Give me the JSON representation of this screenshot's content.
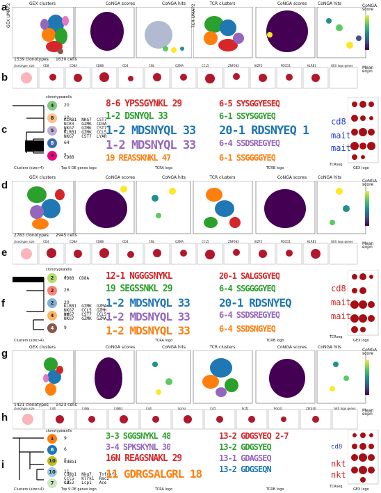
{
  "panels": {
    "a": {
      "letter": "a",
      "titles": [
        "GEX clusters",
        "CoNGA scores",
        "CoNGA hits",
        "TCR clusters",
        "CoNGA scores",
        "CoNGA hits"
      ],
      "clonotypes": "1539 clonotypes",
      "cells": "1630 cells",
      "gex_axis": "GEX UMAP2",
      "tcr_axis": "TCR UMAP2",
      "colorbar_title": "CoNGA\nscore",
      "colorbar_ticks": [
        "1e-5",
        "1e-4",
        "0.001",
        "0.01",
        "0.1",
        "1"
      ],
      "gex_cluster_numbers": [
        "0",
        "1",
        "2",
        "3",
        "4",
        "5",
        "6",
        "7"
      ],
      "tcr_cluster_labels": [
        "AV14++",
        "BV20",
        "AV9",
        "BV1",
        "AV12",
        "AV1"
      ]
    },
    "b": {
      "letter": "b",
      "strips": [
        "clonotype_size",
        "CD8",
        "CD8A",
        "CD8B",
        "CD4",
        "CNL",
        "GZMA",
        "CCL5",
        "ZNF683",
        "IKZF2",
        "PDCD1",
        "KLRB1",
        "GEX logo genes"
      ],
      "axis_labels": [
        "GEX UMAP1",
        "GEX UMAP1",
        "GEX UMAP1",
        "GEX UMAP1",
        "GEX UMAP1",
        "TCR UMAP1",
        "TCR UMAP1",
        "TCR UMAP1",
        "TCR UMAP1",
        "TCR UMAP1",
        "TCR UMAP1"
      ],
      "legend_title": "Mean\nexpn",
      "legend_max": "max",
      "legend_zero": "0"
    },
    "c": {
      "letter": "c",
      "circles": [
        {
          "a": "4",
          "b": "20"
        },
        {
          "a": "8",
          "b": "10"
        },
        {
          "a": "5",
          "b": "4"
        },
        {
          "a": "8",
          "b": "64"
        },
        {
          "a": "9",
          "b": "5"
        }
      ],
      "header": [
        "clonotypes",
        "cells"
      ],
      "genes": "KLRB1  NKG7  CST7\nNCR3   GZMK  CD3A\nNKG7   GZMK  CST7\nKLRB1  GZMK  CCL5\nNKG7   CST7  LYAR",
      "gene_extra": "CD8B",
      "footer": "Clusters (size>4)",
      "genes_label": "Top 9 DE genes logo",
      "tcra_label": "TCRA logo",
      "tcrb_label": "TCRB logo",
      "tcrseq_label": "TCRseq",
      "gexlogo_label": "GEX logo",
      "tcra_rows": [
        "8-6 YPSSGYNKL 29",
        "1-2 DSNYQL 33",
        "1-2 MDSNYQL 33",
        "1-2 MDSNYQL 33",
        "19 REASSKNKL 47"
      ],
      "tcrb_rows": [
        "6-5 SYSGGYESEQ",
        "6-1 SSYSGGYEQ",
        "20-1 RDSNYEQ 1",
        "6-4 SSDSREGYEQ",
        "6-1 SSGGGGYEQ"
      ],
      "side_tags": [
        "cd8",
        "mait",
        "mait"
      ]
    },
    "d": {
      "letter": "d",
      "titles": [
        "GEX clusters",
        "CoNGA scores",
        "CoNGA hits",
        "TCR clusters",
        "CoNGA scores",
        "CoNGA hits"
      ],
      "clonotypes": "2783 clonotypes",
      "cells": "2945 cells",
      "gex_axis": "GEX UMAP2",
      "tcr_axis": "TCR UMAP2",
      "colorbar_title": "CoNGA\nscore",
      "colorbar_ticks": [
        "1e-4",
        "0.001",
        "0.01",
        "0.1",
        "1"
      ],
      "gex_cluster_numbers": [
        "0",
        "1",
        "2",
        "3",
        "4",
        "6",
        "7",
        "8"
      ],
      "tcr_cluster_labels": [
        "AV1",
        "AV9",
        "AV8",
        "BV26",
        "AV14++",
        "BV2"
      ]
    },
    "e": {
      "letter": "e",
      "strips": [
        "clonotype_size",
        "CD4",
        "CD8A",
        "CD8B",
        "CD4",
        "CNL",
        "GZMA",
        "CCL5",
        "ZNF683",
        "IKZF2",
        "PDCD1",
        "KLRB1",
        "GEX logo genes"
      ],
      "legend_title": "Mean\nexpn",
      "legend_max": "max",
      "legend_zero": "0"
    },
    "f": {
      "letter": "f",
      "circles": [
        {
          "a": "2",
          "b": "4"
        },
        {
          "a": "2",
          "b": "26"
        },
        {
          "a": "2",
          "b": "20"
        },
        {
          "a": "4",
          "b": "77"
        },
        {
          "a": "4",
          "b": "9"
        }
      ],
      "header": [
        "clonotypes",
        "cells"
      ],
      "genes": "KLRB1  GZMK  GZMA\nNKG7   CCL5  GZMH\nNKG7   CST7  CCL5\nNKG7   GZMK  GZMA",
      "gene_extra": "CD8B  CD8A",
      "footer": "Clusters (size>4)",
      "genes_label": "Top 9 DE genes logo",
      "tcra_label": "TCRA logo",
      "tcrb_label": "TCRB logo",
      "tcrseq_label": "TCRseq",
      "gexlogo_label": "GEX logo",
      "tcra_rows": [
        "12-1 NGGGSNYKL",
        "19 SEGSSNKL 29",
        "1-2 MDSNYQL 33",
        "1-2 MDSNYQL 33",
        "1-2 MDSNYQL 33"
      ],
      "tcrb_rows": [
        "20-1 SALGSGYEQ",
        "6-4 SSGGGGYEQ",
        "20-1 RDSNYEQ",
        "6-4 SSDSREGYEQ",
        "6-4 SSDSNGYEQ"
      ],
      "side_tags": [
        "cd8",
        "mait",
        "mait"
      ]
    },
    "g": {
      "letter": "g",
      "titles": [
        "GEX clusters",
        "CoNGA scores",
        "CoNGA hits",
        "TCR clusters",
        "CoNGA scores",
        "CoNGA hits"
      ],
      "clonotypes": "1421 clonotypes",
      "cells": "1423 cells",
      "gex_axis": "GEX UMAP2",
      "tcr_axis": "TCR UMAP2",
      "colorbar_title": "CoNGA\nscore",
      "colorbar_ticks": [
        "1e-4",
        "0.001",
        "0.01",
        "0.1",
        "1"
      ],
      "gex_cluster_numbers": [
        "1",
        "2",
        "3",
        "4",
        "5",
        "6",
        "7",
        "10"
      ],
      "tcr_cluster_labels": [
        "AV4",
        "AV9",
        "AV14",
        "AV16",
        "BV1",
        "AV1"
      ]
    },
    "h": {
      "letter": "h",
      "strips": [
        "clonotype_size",
        "Cd4",
        "Cd8a",
        "Cd8b1",
        "Cd4",
        "Gzma",
        "Ccl5",
        "Ikzf2",
        "Pdcd1",
        "Zbtb16",
        "GEX logo genes"
      ],
      "legend_title": "Mean\nexpn",
      "legend_max": "max",
      "legend_zero": "0"
    },
    "i": {
      "letter": "i",
      "circles": [
        {
          "a": "1",
          "b": "9"
        },
        {
          "a": "6",
          "b": "6"
        },
        {
          "a": "10",
          "b": "5"
        },
        {
          "a": "10",
          "b": "11"
        },
        {
          "a": "7",
          "b": "12"
        }
      ],
      "header": [
        "clonotypes",
        "cells"
      ],
      "genes": "Cd8b1  Nkg7   Tnfrsf4\nCcl5   Klrk1  Rac2\nCd52   Lcp1   Ace",
      "gene_extra": "Cd8b1",
      "footer": "Clusters (size>4)",
      "genes_label": "Top 9 DE genes logo",
      "tcra_label": "TCRA logo",
      "tcrb_label": "TCRB logo",
      "tcrseq_label": "TCRseq",
      "gexlogo_label": "GEX logo",
      "tcra_rows": [
        "3-3 SGGSNYKL 48",
        "3-4 SPKSKYNL 30",
        "16N REAGSNAKL 29",
        "11 GDRGSALGRL 18",
        "11 GDRGSALGRL 18"
      ],
      "tcrb_rows": [
        "13-2 GDGSYEQ 2-7",
        "13-2 GDGSYEQ",
        "13-1 GDAGSEQ",
        "13-2 GDGSEQN",
        "13-2 GDGSYEQ"
      ],
      "side_tags": [
        "cd8",
        "nkt",
        "nkt"
      ]
    }
  },
  "colors": {
    "cluster_palette": [
      "#1f77b4",
      "#ff7f0e",
      "#2ca02c",
      "#d62728",
      "#9467bd",
      "#8c564b",
      "#e377c2",
      "#7f7f7f",
      "#bcbd22",
      "#17becf"
    ],
    "conga_dark": "#440154",
    "conga_light": "#fde725",
    "expression_red": "#b2182b"
  }
}
